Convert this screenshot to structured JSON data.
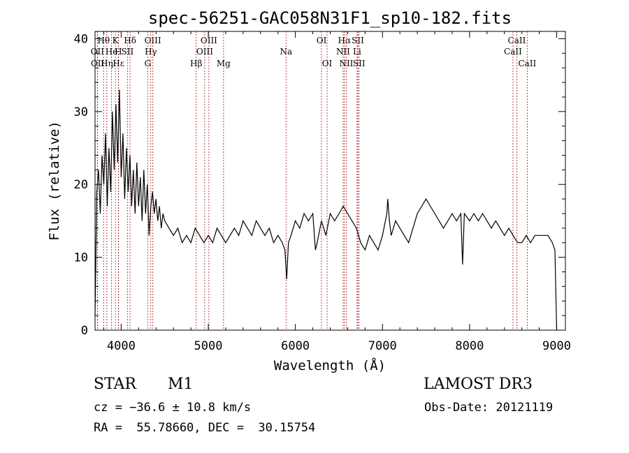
{
  "chart_data": {
    "type": "line",
    "title": "spec-56251-GAC058N31F1_sp10-182.fits",
    "xlabel": "Wavelength (Å)",
    "ylabel": "Flux (relative)",
    "xlim": [
      3700,
      9100
    ],
    "ylim": [
      0,
      41
    ],
    "xticks": [
      4000,
      5000,
      6000,
      7000,
      8000,
      9000
    ],
    "yticks": [
      0,
      10,
      20,
      30,
      40
    ],
    "grid": false,
    "series": [
      {
        "name": "flux",
        "x": [
          3700,
          3720,
          3740,
          3760,
          3780,
          3800,
          3820,
          3840,
          3860,
          3880,
          3900,
          3920,
          3940,
          3960,
          3980,
          4000,
          4020,
          4040,
          4060,
          4080,
          4100,
          4120,
          4140,
          4160,
          4180,
          4200,
          4220,
          4240,
          4260,
          4280,
          4300,
          4320,
          4340,
          4360,
          4380,
          4400,
          4420,
          4440,
          4460,
          4480,
          4500,
          4550,
          4600,
          4650,
          4700,
          4750,
          4800,
          4850,
          4900,
          4950,
          5000,
          5050,
          5100,
          5150,
          5200,
          5250,
          5300,
          5350,
          5400,
          5450,
          5500,
          5550,
          5600,
          5650,
          5700,
          5750,
          5800,
          5850,
          5880,
          5900,
          5920,
          5950,
          6000,
          6050,
          6100,
          6150,
          6200,
          6230,
          6250,
          6300,
          6350,
          6400,
          6450,
          6500,
          6550,
          6600,
          6650,
          6700,
          6750,
          6800,
          6850,
          6900,
          6950,
          7000,
          7050,
          7060,
          7080,
          7100,
          7150,
          7200,
          7250,
          7300,
          7350,
          7400,
          7450,
          7500,
          7550,
          7600,
          7650,
          7700,
          7750,
          7800,
          7850,
          7900,
          7920,
          7940,
          8000,
          8050,
          8100,
          8150,
          8200,
          8250,
          8300,
          8350,
          8400,
          8450,
          8500,
          8550,
          8600,
          8650,
          8700,
          8750,
          8800,
          8850,
          8900,
          8950,
          8980,
          9000
        ],
        "y": [
          2,
          19,
          22,
          16,
          24,
          20,
          27,
          17,
          25,
          19,
          30,
          22,
          31,
          23,
          33,
          21,
          27,
          18,
          25,
          19,
          24,
          17,
          22,
          16,
          23,
          17,
          21,
          15,
          22,
          16,
          20,
          13,
          17,
          19,
          16,
          18,
          15,
          17,
          14,
          16,
          15,
          14,
          13,
          14,
          12,
          13,
          12,
          14,
          13,
          12,
          13,
          12,
          14,
          13,
          12,
          13,
          14,
          13,
          15,
          14,
          13,
          15,
          14,
          13,
          14,
          12,
          13,
          12,
          11,
          7,
          12,
          13,
          15,
          14,
          16,
          15,
          16,
          11,
          12,
          15,
          13,
          16,
          15,
          16,
          17,
          16,
          15,
          14,
          12,
          11,
          13,
          12,
          11,
          13,
          16,
          18,
          15,
          13,
          15,
          14,
          13,
          12,
          14,
          16,
          17,
          18,
          17,
          16,
          15,
          14,
          15,
          16,
          15,
          16,
          9,
          16,
          15,
          16,
          15,
          16,
          15,
          14,
          15,
          14,
          13,
          14,
          13,
          12,
          12,
          13,
          12,
          13,
          13,
          13,
          13,
          12,
          11,
          0
        ],
        "color": "#000000"
      }
    ],
    "line_markers": [
      {
        "label": "Hθ",
        "wavelength": 3798,
        "row": 1
      },
      {
        "label": "OII",
        "wavelength": 3727,
        "row": 2
      },
      {
        "label": "Hη",
        "wavelength": 3835,
        "row": 3
      },
      {
        "label": "OII",
        "wavelength": 3729,
        "row": 3
      },
      {
        "label": "He",
        "wavelength": 3889,
        "row": 2
      },
      {
        "label": "K",
        "wavelength": 3934,
        "row": 1
      },
      {
        "label": "H",
        "wavelength": 3968,
        "row": 2
      },
      {
        "label": "Hε",
        "wavelength": 3970,
        "row": 3
      },
      {
        "label": "Hδ",
        "wavelength": 4102,
        "row": 1
      },
      {
        "label": "SII",
        "wavelength": 4072,
        "row": 2
      },
      {
        "label": "OIII",
        "wavelength": 4363,
        "row": 1
      },
      {
        "label": "Hγ",
        "wavelength": 4340,
        "row": 2
      },
      {
        "label": "G",
        "wavelength": 4305,
        "row": 3
      },
      {
        "label": "Hβ",
        "wavelength": 4861,
        "row": 3
      },
      {
        "label": "OIII",
        "wavelength": 5007,
        "row": 1
      },
      {
        "label": "OIII",
        "wavelength": 4959,
        "row": 2
      },
      {
        "label": "Mg",
        "wavelength": 5175,
        "row": 3
      },
      {
        "label": "Na",
        "wavelength": 5893,
        "row": 2
      },
      {
        "label": "OI",
        "wavelength": 6300,
        "row": 1
      },
      {
        "label": "OI",
        "wavelength": 6364,
        "row": 3
      },
      {
        "label": "Hα",
        "wavelength": 6563,
        "row": 1
      },
      {
        "label": "SII",
        "wavelength": 6717,
        "row": 1
      },
      {
        "label": "NII",
        "wavelength": 6548,
        "row": 2
      },
      {
        "label": "Li",
        "wavelength": 6708,
        "row": 2
      },
      {
        "label": "NII",
        "wavelength": 6584,
        "row": 3
      },
      {
        "label": "SII",
        "wavelength": 6731,
        "row": 3
      },
      {
        "label": "CaII",
        "wavelength": 8542,
        "row": 1
      },
      {
        "label": "CaII",
        "wavelength": 8498,
        "row": 2
      },
      {
        "label": "CaII",
        "wavelength": 8662,
        "row": 3
      }
    ]
  },
  "info": {
    "object_type": "STAR",
    "subclass": "M1",
    "redshift": "cz = −36.6 ± 10.8 km/s",
    "coords": "RA =  55.78660, DEC =  30.15754",
    "survey": "LAMOST DR3",
    "obs_date": "Obs-Date: 20121119"
  }
}
